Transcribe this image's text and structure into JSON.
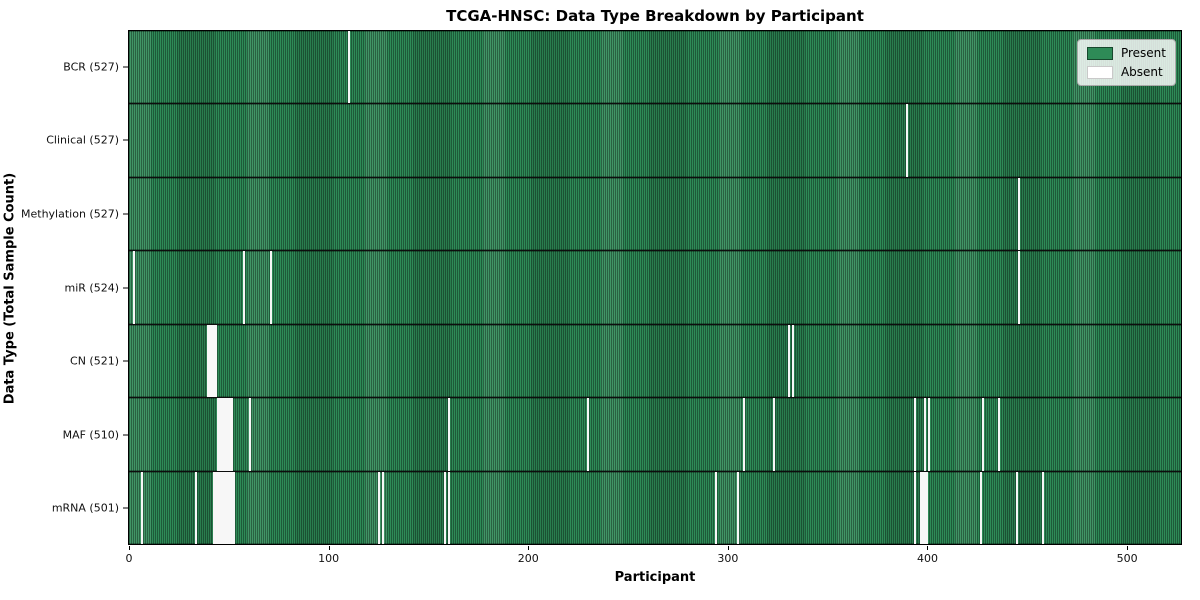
{
  "title": "TCGA-HNSC: Data Type Breakdown by Participant",
  "legend": {
    "present_label": "Present",
    "absent_label": "Absent"
  },
  "colors": {
    "present": "#2e8b57",
    "absent": "#ffffff",
    "border": "#000000"
  },
  "chart_data": {
    "type": "heatmap",
    "title": "TCGA-HNSC: Data Type Breakdown by Participant",
    "xlabel": "Participant",
    "ylabel": "Data Type (Total Sample Count)",
    "legend": [
      {
        "label": "Present",
        "color": "#2e8b57"
      },
      {
        "label": "Absent",
        "color": "#ffffff"
      }
    ],
    "legend_position": "upper right",
    "x_ticks": [
      0,
      100,
      200,
      300,
      400,
      500
    ],
    "x_range": [
      0,
      527
    ],
    "n_participants": 528,
    "grid": false,
    "rows": [
      {
        "data_type": "BCR",
        "label": "BCR (527)",
        "sample_count": 527,
        "absent_participants": [
          110
        ]
      },
      {
        "data_type": "Clinical",
        "label": "Clinical (527)",
        "sample_count": 527,
        "absent_participants": [
          390
        ]
      },
      {
        "data_type": "Methylation",
        "label": "Methylation (527)",
        "sample_count": 527,
        "absent_participants": [
          446
        ]
      },
      {
        "data_type": "miR",
        "label": "miR (524)",
        "sample_count": 524,
        "absent_participants": [
          2,
          57,
          71,
          446
        ]
      },
      {
        "data_type": "CN",
        "label": "CN (521)",
        "sample_count": 521,
        "absent_participants": [
          39,
          40,
          41,
          42,
          43,
          331,
          333
        ]
      },
      {
        "data_type": "MAF",
        "label": "MAF (510)",
        "sample_count": 510,
        "absent_participants": [
          44,
          45,
          46,
          47,
          48,
          49,
          50,
          51,
          60,
          160,
          230,
          308,
          323,
          394,
          399,
          401,
          428,
          436
        ]
      },
      {
        "data_type": "mRNA",
        "label": "mRNA (501)",
        "sample_count": 501,
        "absent_participants": [
          6,
          33,
          42,
          43,
          44,
          45,
          46,
          47,
          48,
          49,
          50,
          51,
          52,
          125,
          127,
          158,
          160,
          294,
          305,
          394,
          397,
          398,
          399,
          400,
          427,
          445,
          458
        ]
      }
    ]
  }
}
